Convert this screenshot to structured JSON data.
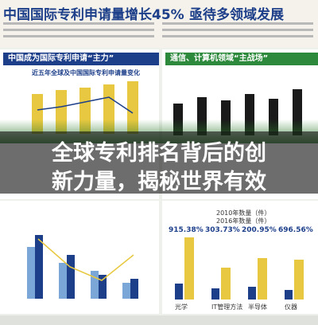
{
  "header": {
    "title": "中国国际专利申请量增长45%",
    "subtitle": "亟待多领域发展"
  },
  "left_panel": {
    "heading": "中国成为国际专利申请“主力”",
    "chart_title": "近五年全球及中国国际专利申请量变化"
  },
  "right_panel": {
    "heading": "通信、计算机领域“主战场”"
  },
  "overlay": {
    "line1": "全球专利排名背后的创",
    "line2": "新力量，揭秘世界有效"
  },
  "bottom_right": {
    "legend": [
      "2010年数量（件）",
      "2016年数量（件）"
    ],
    "growth": [
      "915.38%",
      "303.73%",
      "200.95%",
      "696.56%"
    ],
    "categories": [
      "光学",
      "IT管理方法",
      "半导体",
      "仪器"
    ]
  }
}
